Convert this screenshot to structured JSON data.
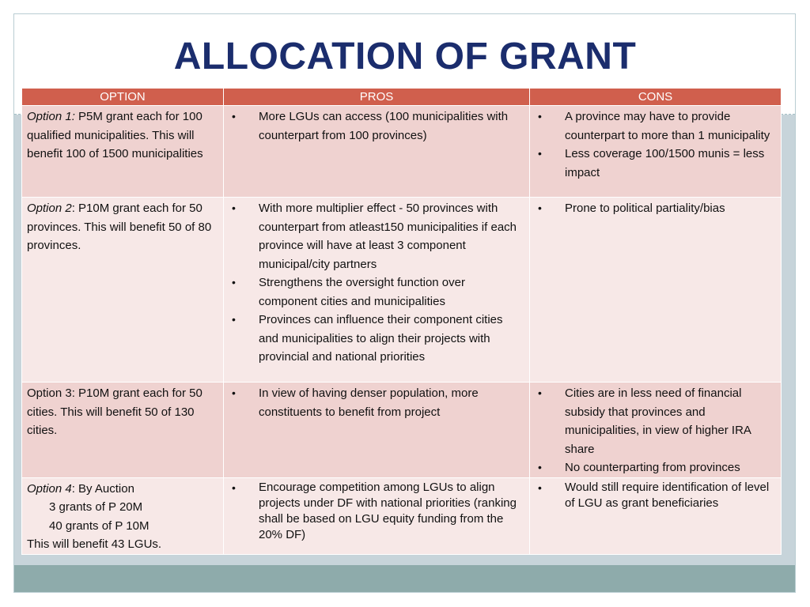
{
  "title": "ALLOCATION OF GRANT",
  "headers": {
    "option": "OPTION",
    "pros": "PROS",
    "cons": "CONS"
  },
  "rows": [
    {
      "option_label": "Option 1:",
      "option_text": "  P5M grant each for 100 qualified municipalities. This will benefit 100 of 1500 municipalities",
      "pros": [
        "More LGUs can access (100 municipalities with counterpart from 100 provinces)"
      ],
      "cons": [
        "A province may have to  provide counterpart to more than 1 municipality",
        "Less coverage 100/1500 munis = less impact"
      ]
    },
    {
      "option_label": "Option 2",
      "option_text": ": P10M grant each for 50 provinces. This will benefit 50 of 80 provinces.",
      "pros": [
        "With more multiplier effect - 50 provinces with counterpart from atleast150 municipalities if each province will have at least 3 component municipal/city partners",
        "Strengthens the oversight function over component cities and municipalities",
        "Provinces can influence their component cities and municipalities to align their projects with provincial and national priorities"
      ],
      "cons": [
        "Prone to political partiality/bias"
      ]
    },
    {
      "option_label": "Option 3",
      "option_text": ": P10M grant each for 50 cities. This will benefit 50 of 130 cities.",
      "pros": [
        "In view of having denser population, more constituents to benefit from project"
      ],
      "cons": [
        "Cities are in less need of financial subsidy that provinces and municipalities, in view of higher IRA share",
        "No counterparting from provinces"
      ]
    },
    {
      "option_label": "Option 4",
      "option_text": ": By Auction",
      "option_lines": [
        "3 grants of P 20M",
        "40 grants of P 10M"
      ],
      "option_footer": "This will benefit 43 LGUs.",
      "pros": [
        "Encourage competition among LGUs to align projects under DF with national priorities (ranking shall be based on LGU equity funding from the 20% DF)"
      ],
      "cons": [
        "Would still require identification of level of LGU as grant beneficiaries"
      ]
    }
  ]
}
